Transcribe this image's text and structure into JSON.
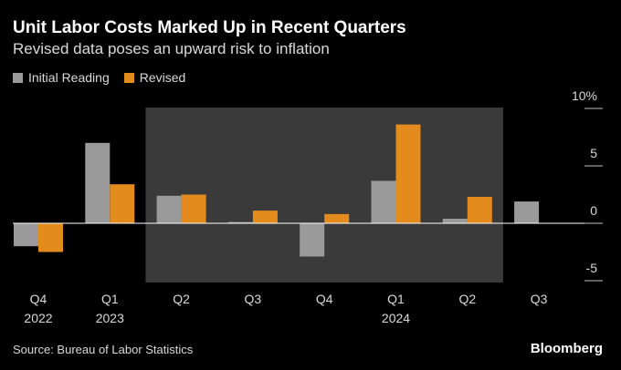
{
  "header": {
    "title": "Unit Labor Costs Marked Up in Recent Quarters",
    "subtitle": "Revised data poses an upward risk to inflation"
  },
  "legend": {
    "initial_label": "Initial Reading",
    "revised_label": "Revised"
  },
  "footer": {
    "source": "Source: Bureau of Labor Statistics",
    "brand": "Bloomberg"
  },
  "colors": {
    "background": "#000000",
    "initial": "#9a9a9a",
    "revised": "#e38b1d",
    "highlight": "#3a3a3a",
    "text": "#d9d9d9"
  },
  "chart_data": {
    "type": "bar",
    "categories": [
      {
        "quarter": "Q4",
        "year": "2022"
      },
      {
        "quarter": "Q1",
        "year": "2023"
      },
      {
        "quarter": "Q2",
        "year": ""
      },
      {
        "quarter": "Q3",
        "year": ""
      },
      {
        "quarter": "Q4",
        "year": ""
      },
      {
        "quarter": "Q1",
        "year": "2024"
      },
      {
        "quarter": "Q2",
        "year": ""
      },
      {
        "quarter": "Q3",
        "year": ""
      }
    ],
    "series": [
      {
        "name": "Initial Reading",
        "values": [
          -2.0,
          7.0,
          2.4,
          0.1,
          -2.9,
          3.7,
          0.4,
          1.9
        ]
      },
      {
        "name": "Revised",
        "values": [
          -2.5,
          3.4,
          2.5,
          1.1,
          0.8,
          8.6,
          2.3,
          null
        ]
      }
    ],
    "ylim": [
      -5,
      10
    ],
    "yticks": [
      10,
      5,
      0,
      -5
    ],
    "ytick_labels": [
      "10%",
      "5",
      "0",
      "-5"
    ],
    "highlight_range": [
      "Q2 2023",
      "Q2 2024"
    ],
    "legend_position": "top-left",
    "grid": false
  }
}
